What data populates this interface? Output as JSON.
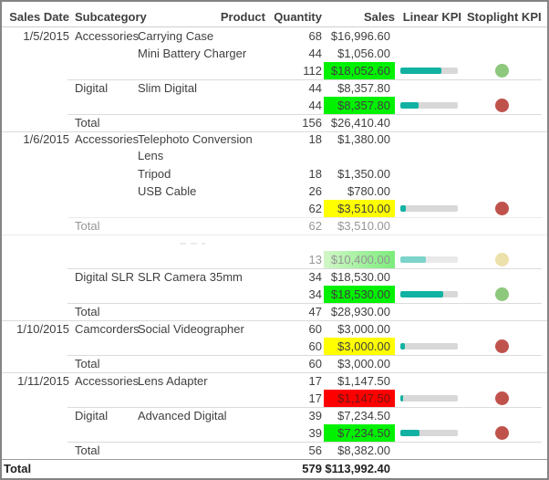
{
  "header": {
    "sales_date": "Sales Date",
    "subcategory": "Subcategory",
    "product": "Product",
    "quantity": "Quantity",
    "sales": "Sales",
    "linear_kpi": "Linear KPI",
    "stoplight_kpi": "Stoplight KPI"
  },
  "colors": {
    "kpi_green": "#00F200",
    "kpi_yellow": "#FFFF00",
    "kpi_red": "#FF0000",
    "linear_bar_teal": "#12B2A2",
    "linear_track_gray": "#D8D8D8",
    "stoplight_green": "#8DC87D",
    "stoplight_red": "#C0524C",
    "stoplight_yellow": "#DCC766"
  },
  "rows": [
    {
      "date": "1/5/2015",
      "subcategory": "Accessories",
      "product": "Carrying Case",
      "quantity": "68",
      "sales": "$16,996.60"
    },
    {
      "product": "Mini Battery Charger",
      "quantity": "44",
      "sales": "$1,056.00"
    },
    {
      "quantity": "112",
      "sales": "$18,052.60",
      "sales_bg": "green",
      "bar_pct": 72,
      "stoplight": "green"
    },
    {
      "subcategory": "Digital",
      "product": "Slim Digital",
      "quantity": "44",
      "sales": "$8,357.80"
    },
    {
      "quantity": "44",
      "sales": "$8,357.80",
      "sales_bg": "green",
      "bar_pct": 32,
      "stoplight": "red"
    },
    {
      "label": "Total",
      "quantity": "156",
      "sales": "$26,410.40"
    },
    {
      "date": "1/6/2015",
      "subcategory": "Accessories",
      "product": "Telephoto Conversion Lens",
      "quantity": "18",
      "sales": "$1,380.00"
    },
    {
      "product": "Tripod",
      "quantity": "18",
      "sales": "$1,350.00"
    },
    {
      "product": "USB Cable",
      "quantity": "26",
      "sales": "$780.00"
    },
    {
      "quantity": "62",
      "sales": "$3,510.00",
      "sales_bg": "yellow",
      "bar_pct": 10,
      "stoplight": "red"
    },
    {
      "label": "Total",
      "quantity": "62",
      "sales": "$3,510.00"
    },
    {
      "quantity": "13",
      "sales": "$10,400.00",
      "sales_bg": "green-faded",
      "bar_pct": 45,
      "stoplight": "yellow-faded"
    },
    {
      "subcategory": "Digital SLR",
      "product": "SLR Camera 35mm",
      "quantity": "34",
      "sales": "$18,530.00"
    },
    {
      "quantity": "34",
      "sales": "$18,530.00",
      "sales_bg": "green",
      "bar_pct": 74,
      "stoplight": "green"
    },
    {
      "label": "Total",
      "quantity": "47",
      "sales": "$28,930.00"
    },
    {
      "date": "1/10/2015",
      "subcategory": "Camcorders",
      "product": "Social Videographer",
      "quantity": "60",
      "sales": "$3,000.00"
    },
    {
      "quantity": "60",
      "sales": "$3,000.00",
      "sales_bg": "yellow",
      "bar_pct": 8,
      "stoplight": "red"
    },
    {
      "label": "Total",
      "quantity": "60",
      "sales": "$3,000.00"
    },
    {
      "date": "1/11/2015",
      "subcategory": "Accessories",
      "product": "Lens Adapter",
      "quantity": "17",
      "sales": "$1,147.50"
    },
    {
      "quantity": "17",
      "sales": "$1,147.50",
      "sales_bg": "red",
      "bar_pct": 5,
      "stoplight": "red"
    },
    {
      "subcategory": "Digital",
      "product": "Advanced Digital",
      "quantity": "39",
      "sales": "$7,234.50"
    },
    {
      "quantity": "39",
      "sales": "$7,234.50",
      "sales_bg": "green",
      "bar_pct": 33,
      "stoplight": "red"
    },
    {
      "label": "Total",
      "quantity": "56",
      "sales": "$8,382.00"
    }
  ],
  "grand_total": {
    "label": "Total",
    "quantity": "579",
    "sales": "$113,992.40"
  }
}
